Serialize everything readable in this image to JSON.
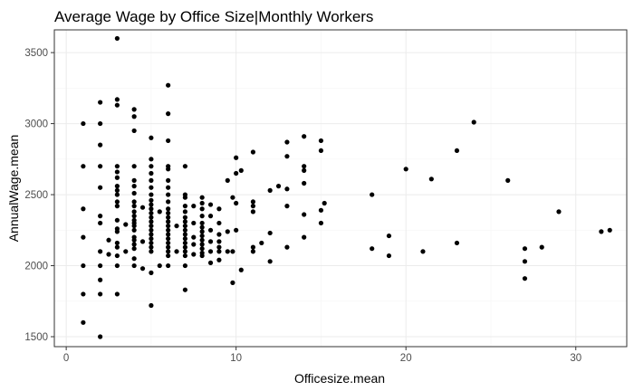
{
  "chart_data": {
    "type": "scatter",
    "title": "Average Wage by Office Size|Monthly Workers",
    "xlabel": "Officesize.mean",
    "ylabel": "AnnualWage.mean",
    "xlim": [
      -0.7,
      33.0
    ],
    "ylim": [
      1430,
      3660
    ],
    "xticks": [
      0,
      10,
      20,
      30
    ],
    "yticks": [
      1500,
      2000,
      2500,
      3000,
      3500
    ],
    "grid": true,
    "point_color": "#000000",
    "points": [
      [
        1,
        3000
      ],
      [
        1,
        2700
      ],
      [
        1,
        2400
      ],
      [
        1,
        2200
      ],
      [
        1,
        2000
      ],
      [
        1,
        1800
      ],
      [
        1,
        1600
      ],
      [
        2,
        3150
      ],
      [
        2,
        3000
      ],
      [
        2,
        2850
      ],
      [
        2,
        2700
      ],
      [
        2,
        2550
      ],
      [
        2,
        2350
      ],
      [
        2,
        2300
      ],
      [
        2,
        2100
      ],
      [
        2,
        2000
      ],
      [
        2,
        1900
      ],
      [
        2,
        1800
      ],
      [
        2,
        1500
      ],
      [
        2.5,
        2180
      ],
      [
        2.5,
        2080
      ],
      [
        3,
        3600
      ],
      [
        3,
        3170
      ],
      [
        3,
        3130
      ],
      [
        3,
        2700
      ],
      [
        3,
        2660
      ],
      [
        3,
        2620
      ],
      [
        3,
        2560
      ],
      [
        3,
        2530
      ],
      [
        3,
        2500
      ],
      [
        3,
        2450
      ],
      [
        3,
        2420
      ],
      [
        3,
        2320
      ],
      [
        3,
        2260
      ],
      [
        3,
        2240
      ],
      [
        3,
        2160
      ],
      [
        3,
        2130
      ],
      [
        3,
        2070
      ],
      [
        3,
        2000
      ],
      [
        3,
        1800
      ],
      [
        3.5,
        2290
      ],
      [
        3.5,
        2100
      ],
      [
        4,
        3100
      ],
      [
        4,
        3050
      ],
      [
        4,
        2950
      ],
      [
        4,
        2700
      ],
      [
        4,
        2600
      ],
      [
        4,
        2560
      ],
      [
        4,
        2510
      ],
      [
        4,
        2450
      ],
      [
        4,
        2420
      ],
      [
        4,
        2380
      ],
      [
        4,
        2350
      ],
      [
        4,
        2320
      ],
      [
        4,
        2300
      ],
      [
        4,
        2280
      ],
      [
        4,
        2250
      ],
      [
        4,
        2200
      ],
      [
        4,
        2180
      ],
      [
        4,
        2150
      ],
      [
        4,
        2120
      ],
      [
        4,
        2050
      ],
      [
        4,
        2000
      ],
      [
        4.5,
        2410
      ],
      [
        4.5,
        2170
      ],
      [
        4.5,
        1980
      ],
      [
        5,
        2900
      ],
      [
        5,
        2750
      ],
      [
        5,
        2700
      ],
      [
        5,
        2650
      ],
      [
        5,
        2600
      ],
      [
        5,
        2550
      ],
      [
        5,
        2500
      ],
      [
        5,
        2460
      ],
      [
        5,
        2430
      ],
      [
        5,
        2400
      ],
      [
        5,
        2370
      ],
      [
        5,
        2340
      ],
      [
        5,
        2310
      ],
      [
        5,
        2280
      ],
      [
        5,
        2250
      ],
      [
        5,
        2220
      ],
      [
        5,
        2190
      ],
      [
        5,
        2160
      ],
      [
        5,
        2130
      ],
      [
        5,
        2100
      ],
      [
        5,
        1950
      ],
      [
        5,
        1720
      ],
      [
        5.5,
        2380
      ],
      [
        5.5,
        2000
      ],
      [
        6,
        3270
      ],
      [
        6,
        3070
      ],
      [
        6,
        2880
      ],
      [
        6,
        2700
      ],
      [
        6,
        2680
      ],
      [
        6,
        2600
      ],
      [
        6,
        2550
      ],
      [
        6,
        2500
      ],
      [
        6,
        2450
      ],
      [
        6,
        2400
      ],
      [
        6,
        2370
      ],
      [
        6,
        2340
      ],
      [
        6,
        2310
      ],
      [
        6,
        2280
      ],
      [
        6,
        2250
      ],
      [
        6,
        2220
      ],
      [
        6,
        2190
      ],
      [
        6,
        2160
      ],
      [
        6,
        2130
      ],
      [
        6,
        2100
      ],
      [
        6,
        2070
      ],
      [
        6,
        2000
      ],
      [
        6.5,
        2280
      ],
      [
        6.5,
        2100
      ],
      [
        7,
        2700
      ],
      [
        7,
        2500
      ],
      [
        7,
        2480
      ],
      [
        7,
        2420
      ],
      [
        7,
        2380
      ],
      [
        7,
        2340
      ],
      [
        7,
        2310
      ],
      [
        7,
        2280
      ],
      [
        7,
        2250
      ],
      [
        7,
        2220
      ],
      [
        7,
        2190
      ],
      [
        7,
        2160
      ],
      [
        7,
        2130
      ],
      [
        7,
        2100
      ],
      [
        7,
        2070
      ],
      [
        7,
        2000
      ],
      [
        7,
        1830
      ],
      [
        7.5,
        2420
      ],
      [
        7.5,
        2300
      ],
      [
        7.5,
        2200
      ],
      [
        7.5,
        2150
      ],
      [
        7.5,
        2080
      ],
      [
        8,
        2480
      ],
      [
        8,
        2440
      ],
      [
        8,
        2400
      ],
      [
        8,
        2350
      ],
      [
        8,
        2300
      ],
      [
        8,
        2270
      ],
      [
        8,
        2240
      ],
      [
        8,
        2210
      ],
      [
        8,
        2180
      ],
      [
        8,
        2150
      ],
      [
        8,
        2120
      ],
      [
        8,
        2090
      ],
      [
        8,
        2070
      ],
      [
        8.5,
        2430
      ],
      [
        8.5,
        2350
      ],
      [
        8.5,
        2250
      ],
      [
        8.5,
        2170
      ],
      [
        8.5,
        2100
      ],
      [
        8.5,
        2020
      ],
      [
        9,
        2400
      ],
      [
        9,
        2300
      ],
      [
        9,
        2220
      ],
      [
        9,
        2170
      ],
      [
        9,
        2130
      ],
      [
        9,
        2100
      ],
      [
        9,
        2040
      ],
      [
        9.5,
        2600
      ],
      [
        9.5,
        2240
      ],
      [
        9.5,
        2100
      ],
      [
        9.8,
        2480
      ],
      [
        9.8,
        2100
      ],
      [
        9.8,
        1880
      ],
      [
        10,
        2760
      ],
      [
        10,
        2650
      ],
      [
        10,
        2440
      ],
      [
        10,
        2250
      ],
      [
        10.3,
        2670
      ],
      [
        10.3,
        1970
      ],
      [
        11,
        2800
      ],
      [
        11,
        2450
      ],
      [
        11,
        2420
      ],
      [
        11,
        2380
      ],
      [
        11,
        2130
      ],
      [
        11,
        2100
      ],
      [
        11.5,
        2160
      ],
      [
        12,
        2530
      ],
      [
        12,
        2230
      ],
      [
        12,
        2030
      ],
      [
        12.5,
        2560
      ],
      [
        13,
        2870
      ],
      [
        13,
        2770
      ],
      [
        13,
        2540
      ],
      [
        13,
        2420
      ],
      [
        13,
        2130
      ],
      [
        14,
        2910
      ],
      [
        14,
        2700
      ],
      [
        14,
        2670
      ],
      [
        14,
        2580
      ],
      [
        14,
        2360
      ],
      [
        14,
        2200
      ],
      [
        15,
        2880
      ],
      [
        15,
        2810
      ],
      [
        15,
        2390
      ],
      [
        15,
        2300
      ],
      [
        15.2,
        2440
      ],
      [
        18,
        2500
      ],
      [
        18,
        2120
      ],
      [
        19,
        2210
      ],
      [
        19,
        2070
      ],
      [
        20,
        2680
      ],
      [
        21,
        2100
      ],
      [
        21.5,
        2610
      ],
      [
        23,
        2810
      ],
      [
        23,
        2160
      ],
      [
        24,
        3010
      ],
      [
        26,
        2600
      ],
      [
        27,
        2120
      ],
      [
        27,
        2030
      ],
      [
        27,
        1910
      ],
      [
        28,
        2130
      ],
      [
        29,
        2380
      ],
      [
        31.5,
        2240
      ],
      [
        32,
        2250
      ]
    ]
  }
}
